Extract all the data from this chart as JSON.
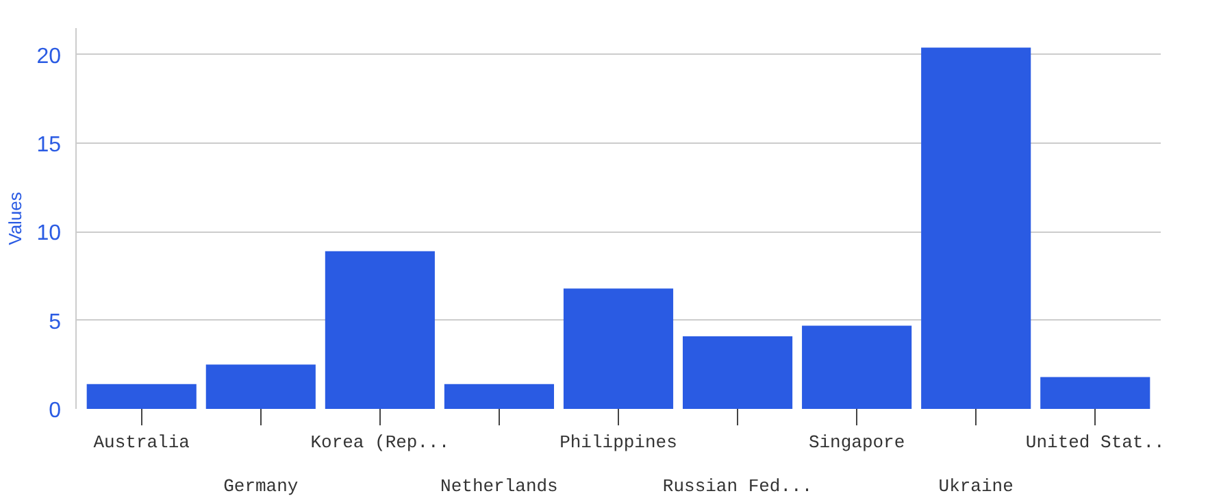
{
  "chart_data": {
    "type": "bar",
    "ylabel": "Values",
    "categories": [
      "Australia",
      "Germany",
      "Korea (Rep...",
      "Netherlands",
      "Philippines",
      "Russian Fed...",
      "Singapore",
      "Ukraine",
      "United Stat.."
    ],
    "values": [
      1.4,
      2.5,
      8.9,
      1.4,
      6.8,
      4.1,
      4.7,
      20.4,
      1.8
    ],
    "color": "#2a5be3",
    "ylim": [
      0,
      21.5
    ],
    "yticks": [
      0,
      5,
      10,
      15,
      20
    ],
    "grid": "y"
  }
}
